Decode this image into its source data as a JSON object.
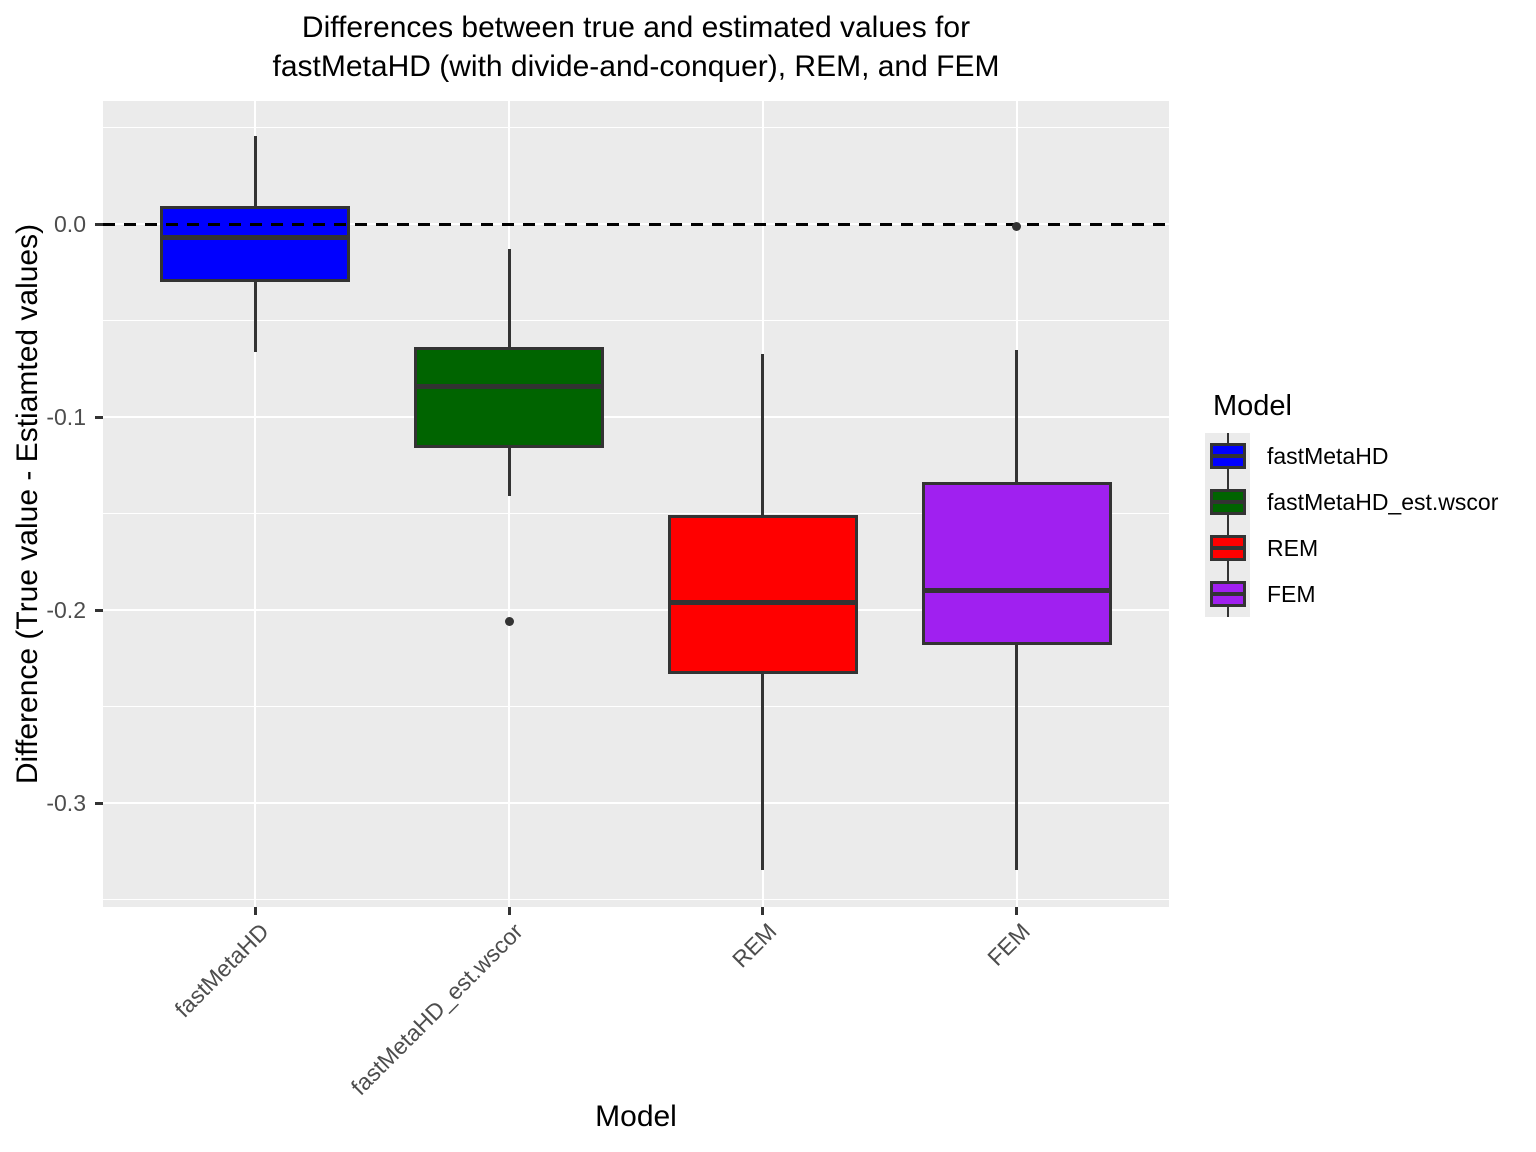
{
  "title": {
    "line1": "Differences between true and estimated values for",
    "line2": "fastMetaHD (with divide-and-conquer), REM, and FEM"
  },
  "axes": {
    "y": {
      "label": "Difference (True value - Estiamted values)",
      "ticks": [
        {
          "value": 0.0,
          "label": "0.0"
        },
        {
          "value": -0.1,
          "label": "-0.1"
        },
        {
          "value": -0.2,
          "label": "-0.2"
        },
        {
          "value": -0.3,
          "label": "-0.3"
        }
      ]
    },
    "x": {
      "label": "Model",
      "categories": [
        "fastMetaHD",
        "fastMetaHD_est.wscor",
        "REM",
        "FEM"
      ]
    }
  },
  "legend": {
    "title": "Model",
    "entries": [
      {
        "label": "fastMetaHD",
        "color": "#0000FF"
      },
      {
        "label": "fastMetaHD_est.wscor",
        "color": "#006400"
      },
      {
        "label": "REM",
        "color": "#FF0000"
      },
      {
        "label": "FEM",
        "color": "#A020F0"
      }
    ]
  },
  "chart_data": {
    "type": "boxplot",
    "title": "Differences between true and estimated values for fastMetaHD (with divide-and-conquer), REM, and FEM",
    "xlabel": "Model",
    "ylabel": "Difference (True value - Estiamted values)",
    "ylim": [
      -0.354,
      0.064
    ],
    "categories": [
      "fastMetaHD",
      "fastMetaHD_est.wscor",
      "REM",
      "FEM"
    ],
    "series": [
      {
        "name": "fastMetaHD",
        "color": "#0000FF",
        "whisker_low": -0.066,
        "q1": -0.029,
        "median": -0.007,
        "q3": 0.009,
        "whisker_high": 0.046,
        "outliers": []
      },
      {
        "name": "fastMetaHD_est.wscor",
        "color": "#006400",
        "whisker_low": -0.141,
        "q1": -0.115,
        "median": -0.084,
        "q3": -0.064,
        "whisker_high": -0.013,
        "outliers": [
          -0.206
        ]
      },
      {
        "name": "REM",
        "color": "#FF0000",
        "whisker_low": -0.335,
        "q1": -0.232,
        "median": -0.196,
        "q3": -0.151,
        "whisker_high": -0.067,
        "outliers": []
      },
      {
        "name": "FEM",
        "color": "#A020F0",
        "whisker_low": -0.335,
        "q1": -0.217,
        "median": -0.19,
        "q3": -0.134,
        "whisker_high": -0.065,
        "outliers": [
          -0.001
        ]
      }
    ],
    "grid": {
      "major": [
        0.0,
        -0.1,
        -0.2,
        -0.3
      ],
      "minor": [
        0.05,
        -0.05,
        -0.15,
        -0.25,
        -0.35
      ]
    },
    "reference_line": {
      "value": 0.0,
      "style": "dashed",
      "color": "#000000"
    },
    "legend_position": "right",
    "legend_title": "Model"
  },
  "colors": {
    "panel_bg": "#EBEBEB",
    "gridline": "#FFFFFF",
    "box_border": "#333333",
    "outlier": "#333333",
    "tick_text": "#4D4D4D",
    "reference_line": "#000000",
    "legend_key_bg": "#EBEBEB"
  }
}
